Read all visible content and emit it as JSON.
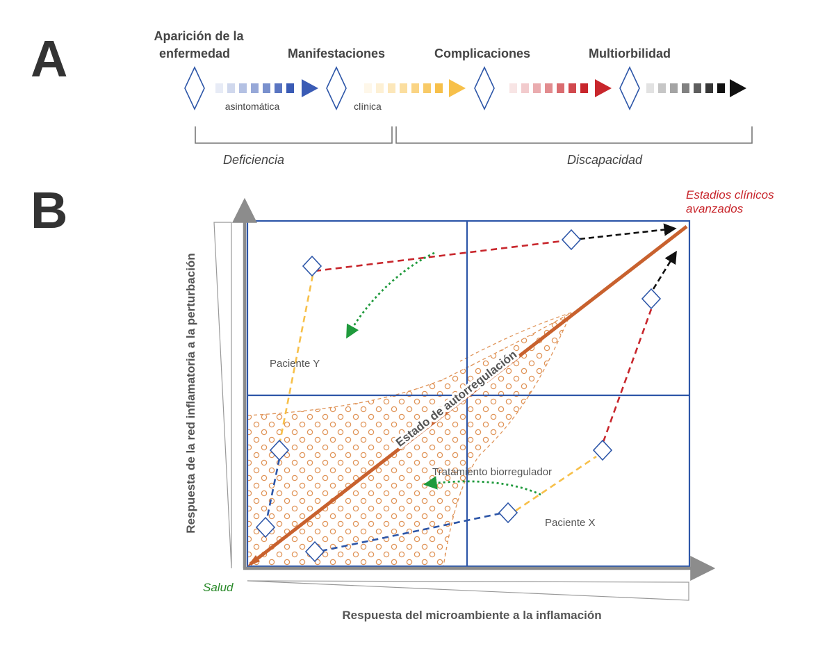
{
  "panel_a": {
    "letter": "A",
    "stages": {
      "onset_line1": "Aparición de la",
      "onset_line2": "enfermedad",
      "manifestations": "Manifestaciones",
      "complications": "Complicaciones",
      "multimorbidity": "Multiorbilidad"
    },
    "sublabels": {
      "asymptomatic": "asintomática",
      "clinical": "clínica"
    },
    "brackets": {
      "deficiency": "Deficiencia",
      "disability": "Discapacidad"
    },
    "colors": {
      "blue": "#3a5bb5",
      "yellow": "#f7c04a",
      "red": "#c8262c",
      "black": "#111111",
      "diamond": "#2d56a8"
    }
  },
  "panel_b": {
    "letter": "B",
    "y_axis_label": "Respuesta de la red inflamatoria a la perturbación",
    "x_axis_label": "Respuesta del microambiente a la inflamación",
    "origin_label": "Salud",
    "corner_label_line1": "Estadios clínicos",
    "corner_label_line2": "avanzados",
    "diagonal_label": "Estado de autorregulación",
    "patient_y": "Paciente Y",
    "patient_x": "Paciente X",
    "treatment": "Tratamiento biorregulador",
    "colors": {
      "grid": "#2d56a8",
      "axis": "#8c8c8c",
      "diagonal": "#c8612e",
      "hatch": "#e0955a",
      "dashed_red": "#c8262c",
      "dashed_yellow": "#f7c04a",
      "dashed_blue": "#2d56a8",
      "dashed_green": "#1f9a3c",
      "dashed_black": "#111111",
      "salud": "#2a8a2a",
      "advanced": "#c8262c"
    }
  }
}
